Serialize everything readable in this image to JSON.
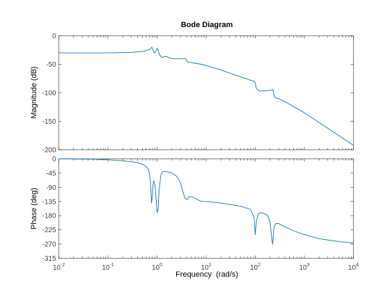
{
  "chart_data": {
    "type": "line",
    "title": "Bode Diagram",
    "xlabel": "Frequency  (rad/s)",
    "xscale": "log",
    "xlim": [
      0.01,
      10000
    ],
    "x_ticks": [
      {
        "value": 0.01,
        "base": "10",
        "exp": "-2"
      },
      {
        "value": 0.1,
        "base": "10",
        "exp": "-1"
      },
      {
        "value": 1,
        "base": "10",
        "exp": "0"
      },
      {
        "value": 10,
        "base": "10",
        "exp": "1"
      },
      {
        "value": 100,
        "base": "10",
        "exp": "2"
      },
      {
        "value": 1000,
        "base": "10",
        "exp": "3"
      },
      {
        "value": 10000,
        "base": "10",
        "exp": "4"
      }
    ],
    "line_color": "#0072BD",
    "grid": false,
    "panels": [
      {
        "ylabel": "Magnitude (dB)",
        "ylim": [
          -200,
          0
        ],
        "yticks": [
          0,
          -50,
          -100,
          -150,
          -200
        ],
        "ytick_labels": [
          "0",
          "-50",
          "-100",
          "-150",
          "-200"
        ],
        "x": [
          0.01,
          0.1,
          0.3,
          0.55,
          0.7,
          0.78,
          0.82,
          0.88,
          0.95,
          1.0,
          1.05,
          1.12,
          1.25,
          1.5,
          2,
          3,
          3.8,
          4.2,
          5,
          8,
          10,
          20,
          50,
          95,
          100,
          105,
          120,
          180,
          230,
          240,
          260,
          300,
          500,
          1000,
          3000,
          10000
        ],
        "y": [
          -30,
          -30,
          -29,
          -27,
          -24,
          -20,
          -24,
          -30,
          -27,
          -22,
          -25,
          -33,
          -38,
          -36,
          -40,
          -40,
          -40,
          -46,
          -47,
          -50,
          -52,
          -60,
          -72,
          -80,
          -82,
          -92,
          -97,
          -96,
          -95,
          -104,
          -109,
          -110,
          -120,
          -135,
          -162,
          -192
        ]
      },
      {
        "ylabel": "Phase (deg)",
        "ylim": [
          -315,
          0
        ],
        "yticks": [
          0,
          -45,
          -90,
          -135,
          -180,
          -225,
          -270,
          -315
        ],
        "ytick_labels": [
          "0",
          "-45",
          "-90",
          "-135",
          "-180",
          "-225",
          "-270",
          "-315"
        ],
        "x": [
          0.01,
          0.05,
          0.1,
          0.2,
          0.4,
          0.55,
          0.65,
          0.7,
          0.74,
          0.77,
          0.8,
          0.83,
          0.86,
          0.9,
          0.95,
          1.0,
          1.05,
          1.1,
          1.2,
          1.3,
          1.5,
          2,
          2.5,
          3,
          3.3,
          3.7,
          4.1,
          4.5,
          5,
          6,
          8,
          10,
          20,
          50,
          80,
          95,
          100,
          103,
          108,
          115,
          130,
          160,
          180,
          200,
          215,
          225,
          230,
          240,
          260,
          300,
          400,
          600,
          1000,
          2000,
          5000,
          10000
        ],
        "y": [
          0,
          -1,
          -3,
          -6,
          -12,
          -20,
          -30,
          -45,
          -80,
          -140,
          -120,
          -80,
          -70,
          -80,
          -120,
          -170,
          -160,
          -100,
          -50,
          -40,
          -40,
          -45,
          -55,
          -75,
          -100,
          -125,
          -130,
          -120,
          -120,
          -125,
          -135,
          -135,
          -140,
          -150,
          -160,
          -185,
          -240,
          -215,
          -190,
          -175,
          -170,
          -175,
          -180,
          -200,
          -245,
          -270,
          -260,
          -220,
          -205,
          -205,
          -215,
          -228,
          -240,
          -253,
          -262,
          -267
        ]
      }
    ]
  }
}
